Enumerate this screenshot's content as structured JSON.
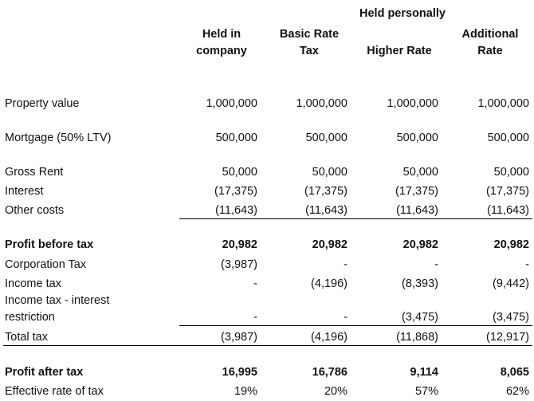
{
  "header": {
    "group_label": "Held personally",
    "columns": [
      {
        "line1": "Held in",
        "line2": "company"
      },
      {
        "line1": "Basic Rate",
        "line2": "Tax"
      },
      {
        "line1": "",
        "line2": "Higher Rate"
      },
      {
        "line1": "Additional",
        "line2": "Rate"
      }
    ]
  },
  "rows": {
    "property_value": {
      "label": "Property value",
      "values": [
        "1,000,000",
        "1,000,000",
        "1,000,000",
        "1,000,000"
      ]
    },
    "mortgage": {
      "label": "Mortgage (50% LTV)",
      "values": [
        "500,000",
        "500,000",
        "500,000",
        "500,000"
      ]
    },
    "gross_rent": {
      "label": "Gross Rent",
      "values": [
        "50,000",
        "50,000",
        "50,000",
        "50,000"
      ]
    },
    "interest": {
      "label": "Interest",
      "values": [
        "(17,375)",
        "(17,375)",
        "(17,375)",
        "(17,375)"
      ]
    },
    "other_costs": {
      "label": "Other costs",
      "values": [
        "(11,643)",
        "(11,643)",
        "(11,643)",
        "(11,643)"
      ]
    },
    "profit_before_tax": {
      "label": "Profit before tax",
      "values": [
        "20,982",
        "20,982",
        "20,982",
        "20,982"
      ]
    },
    "corporation_tax": {
      "label": "Corporation Tax",
      "values": [
        "(3,987)",
        "-",
        "-",
        "-"
      ]
    },
    "income_tax": {
      "label": "Income tax",
      "values": [
        "-",
        "(4,196)",
        "(8,393)",
        "(9,442)"
      ]
    },
    "income_tax_interest": {
      "label_line1": "Income tax - interest",
      "label_line2": "restriction",
      "values": [
        "-",
        "-",
        "(3,475)",
        "(3,475)"
      ]
    },
    "total_tax": {
      "label": "Total tax",
      "values": [
        "(3,987)",
        "(4,196)",
        "(11,868)",
        "(12,917)"
      ]
    },
    "profit_after_tax": {
      "label": "Profit after tax",
      "values": [
        "16,995",
        "16,786",
        "9,114",
        "8,065"
      ]
    },
    "effective_rate": {
      "label": "Effective rate of tax",
      "values": [
        "19%",
        "20%",
        "57%",
        "62%"
      ]
    }
  }
}
